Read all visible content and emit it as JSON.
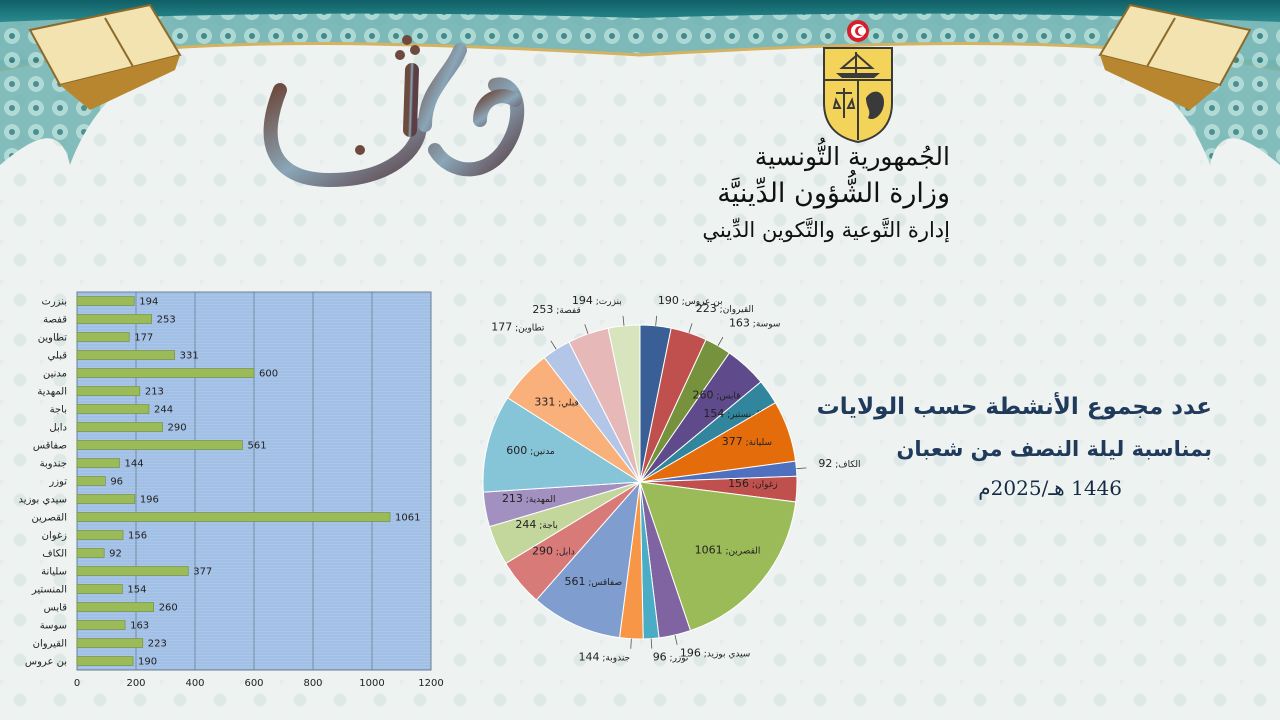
{
  "header": {
    "calligraphy_text": "شهر شعبان",
    "ministry_lines": [
      "الجُمهورية التُّونسية",
      "وزارة الشُّؤون الدِّينيَّة",
      "إدارة التَّوعية والتَّكوين الدِّيني"
    ]
  },
  "title": {
    "line1": "عدد مجموع الأنشطة حسب الولايات",
    "line2": "بمناسبة ليلة النصف من شعبان",
    "line3": "1446 هـ/2025م"
  },
  "colors": {
    "bar_fill": "#9bbb59",
    "plot_bg": "#a9c5e8",
    "title_color": "#1f3a5a"
  },
  "chart_data": [
    {
      "type": "bar",
      "orientation": "horizontal",
      "categories": [
        "بنزرت",
        "قفصة",
        "تطاوين",
        "قبلي",
        "مدنين",
        "المهدية",
        "باجة",
        "دابل",
        "صفاقس",
        "جندوبة",
        "توزر",
        "سيدي بوزيد",
        "القصرين",
        "زغوان",
        "الكاف",
        "سليانة",
        "المنستير",
        "قابس",
        "سوسة",
        "القيروان",
        "بن عروس"
      ],
      "values": [
        194,
        253,
        177,
        331,
        600,
        213,
        244,
        290,
        561,
        144,
        96,
        196,
        1061,
        156,
        92,
        377,
        154,
        260,
        163,
        223,
        190
      ],
      "xlim": [
        0,
        1200
      ],
      "xticks": [
        0,
        200,
        400,
        600,
        800,
        1000,
        1200
      ],
      "grid": true
    },
    {
      "type": "pie",
      "slices": [
        {
          "label": "بن عروس",
          "value": 190,
          "color": "#3a5f96"
        },
        {
          "label": "القيروان",
          "value": 223,
          "color": "#c0504d"
        },
        {
          "label": "سوسة",
          "value": 163,
          "color": "#76923c"
        },
        {
          "label": "قابس",
          "value": 260,
          "color": "#5f4b8b"
        },
        {
          "label": "المنستير",
          "value": 154,
          "color": "#31859c"
        },
        {
          "label": "سليانة",
          "value": 377,
          "color": "#e46c0a"
        },
        {
          "label": "الكاف",
          "value": 92,
          "color": "#4f6fbf"
        },
        {
          "label": "زغوان",
          "value": 156,
          "color": "#c0504d"
        },
        {
          "label": "القصرين",
          "value": 1061,
          "color": "#9bbb59"
        },
        {
          "label": "سيدي بوزيد",
          "value": 196,
          "color": "#8064a2"
        },
        {
          "label": "توزر",
          "value": 96,
          "color": "#4bacc6"
        },
        {
          "label": "جندوبة",
          "value": 144,
          "color": "#f79646"
        },
        {
          "label": "صفاقس",
          "value": 561,
          "color": "#7f9ecf"
        },
        {
          "label": "دابل",
          "value": 290,
          "color": "#d87a78"
        },
        {
          "label": "باجة",
          "value": 244,
          "color": "#c3d69b"
        },
        {
          "label": "المهدية",
          "value": 213,
          "color": "#a290c0"
        },
        {
          "label": "مدنين",
          "value": 600,
          "color": "#86c4d8"
        },
        {
          "label": "قبلي",
          "value": 331,
          "color": "#fab07a"
        },
        {
          "label": "تطاوين",
          "value": 177,
          "color": "#b4c6e7"
        },
        {
          "label": "قفصة",
          "value": 253,
          "color": "#e6b9b8"
        },
        {
          "label": "بنزرت",
          "value": 194,
          "color": "#d7e4bd"
        }
      ]
    }
  ]
}
